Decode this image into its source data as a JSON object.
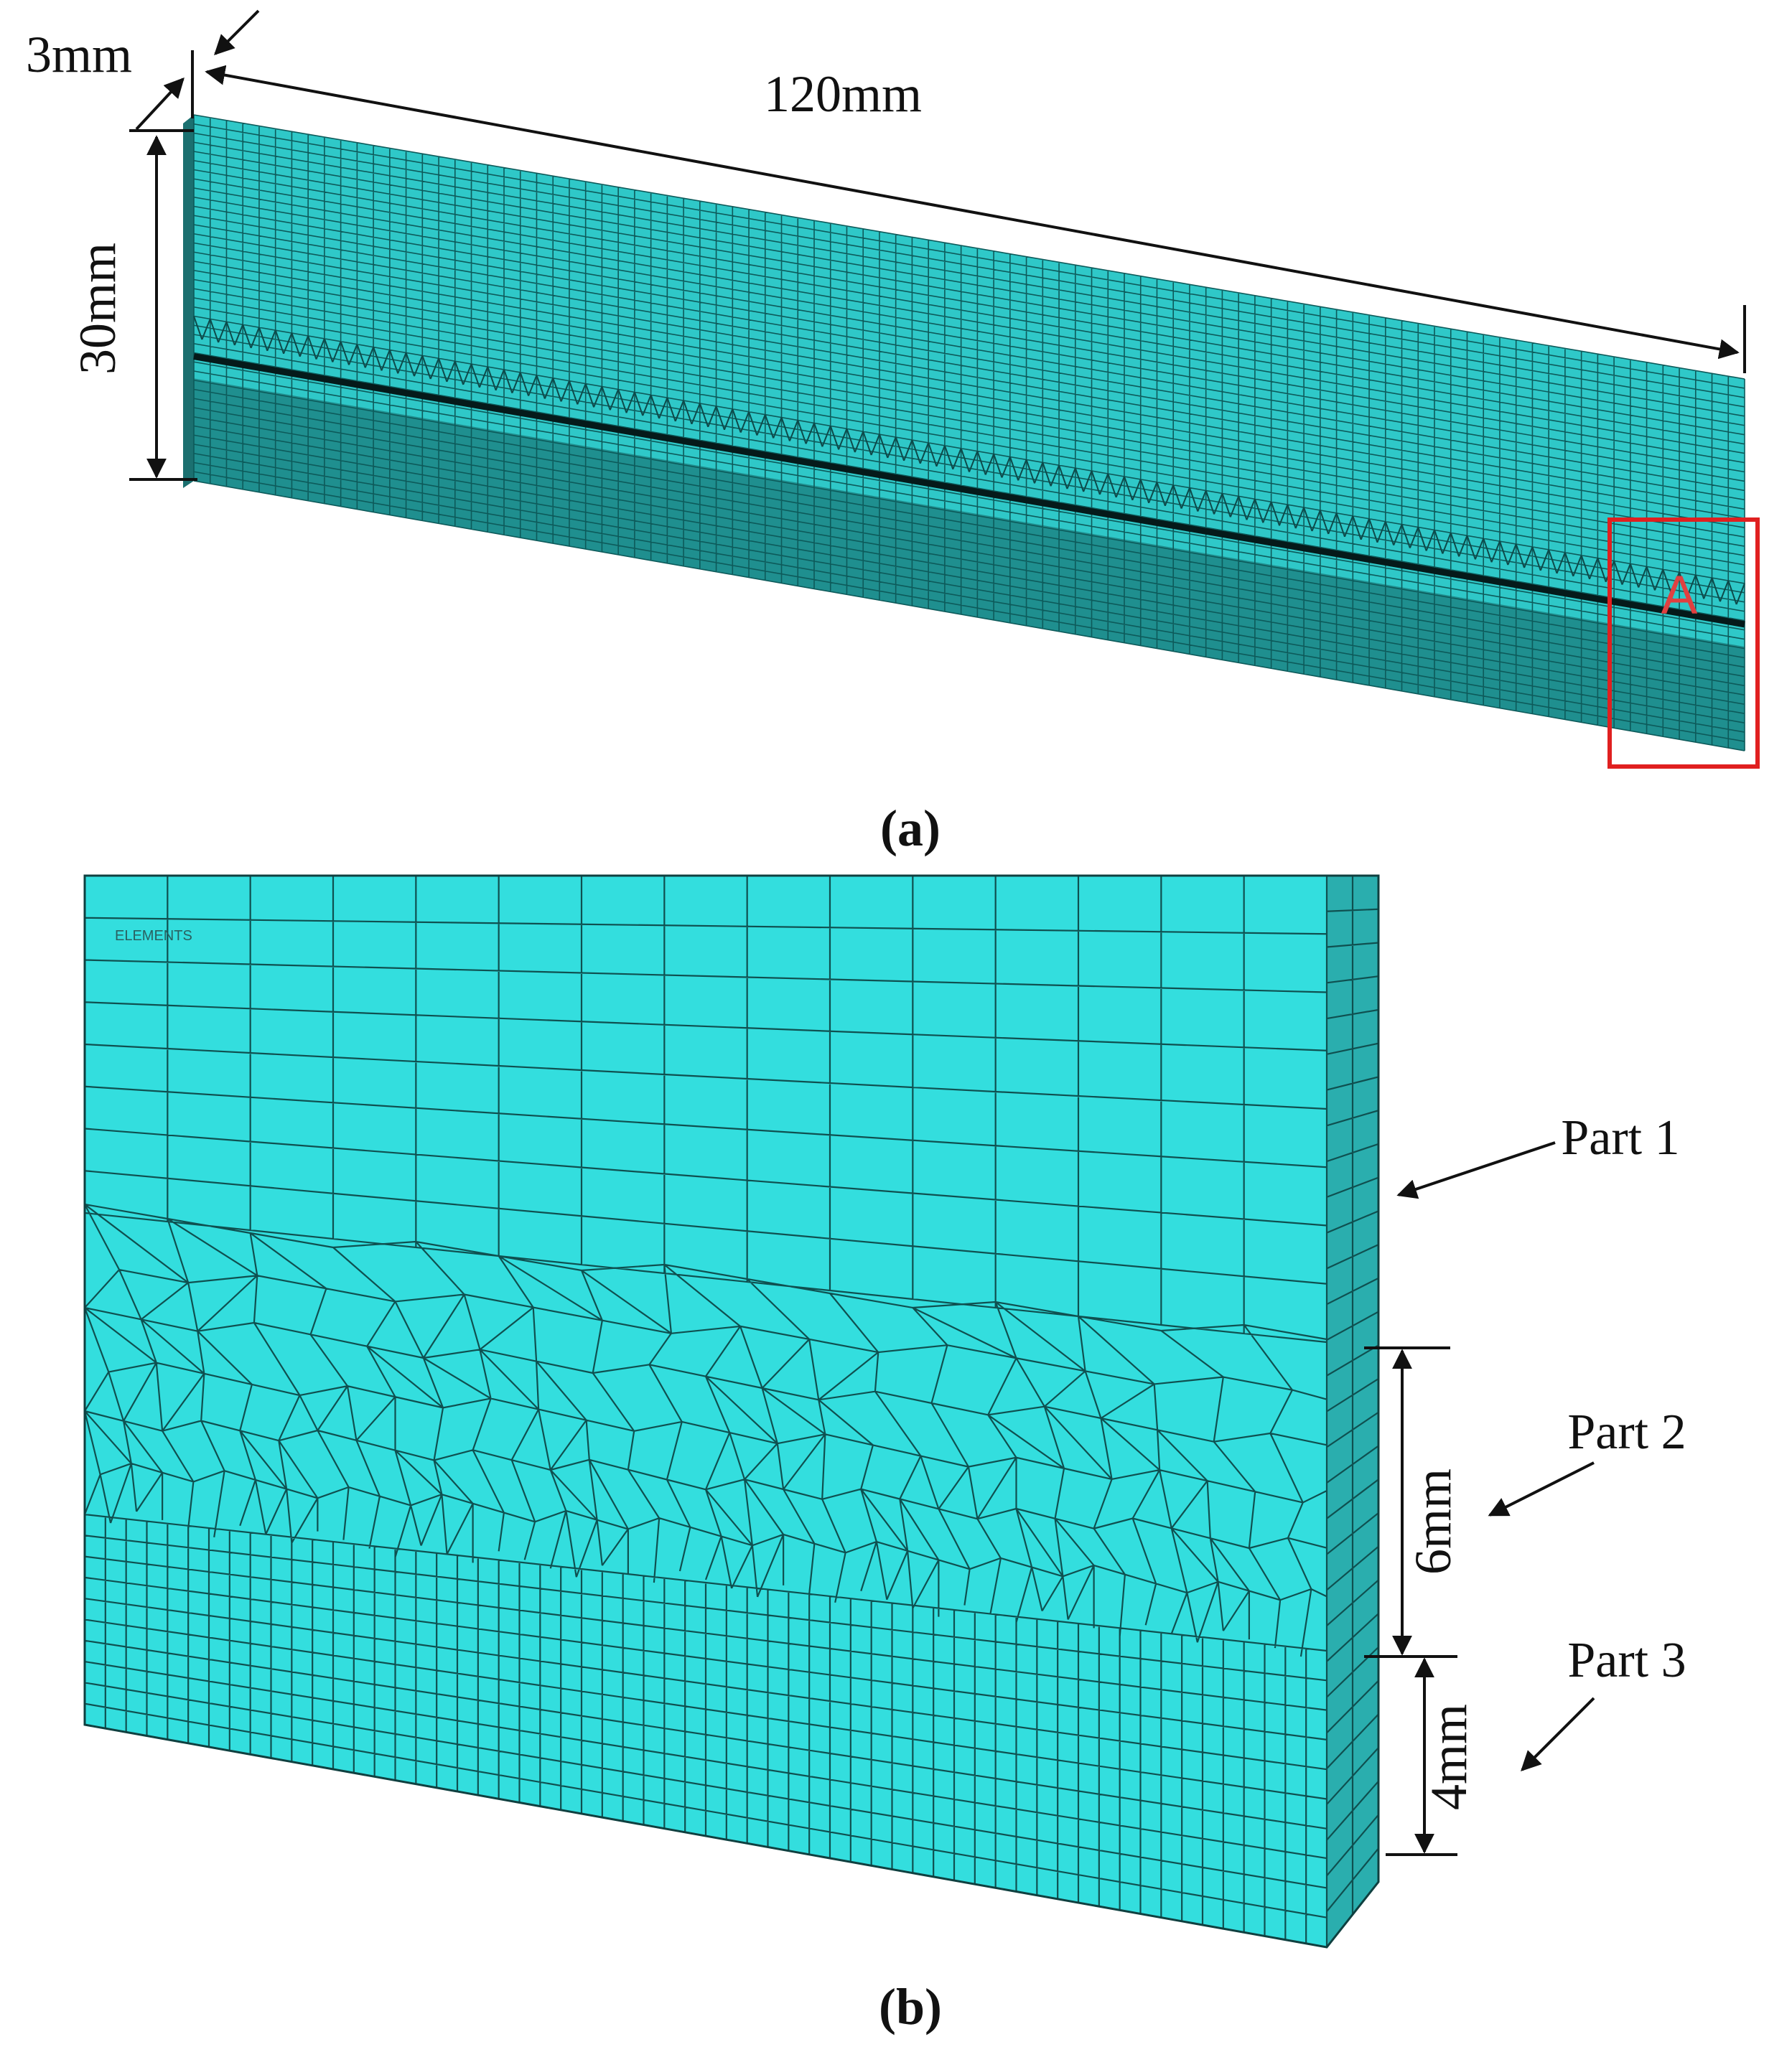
{
  "panel_a": {
    "dimensions": {
      "thickness": "3mm",
      "length": "120mm",
      "height": "30mm"
    },
    "detail_label": "A",
    "caption": "(a)"
  },
  "panel_b": {
    "element_label": "ELEMENTS",
    "parts": [
      "Part 1",
      "Part 2",
      "Part 3"
    ],
    "dimensions": {
      "part2_height": "6mm",
      "part3_height": "4mm"
    },
    "caption": "(b)"
  }
}
